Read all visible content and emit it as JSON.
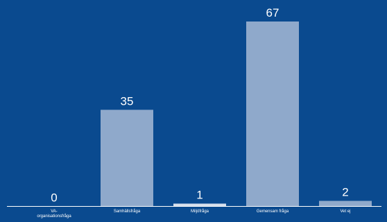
{
  "chart_data": {
    "type": "bar",
    "categories": [
      "VA-organisationsfråga",
      "Samhällsfråga",
      "Miljöfråga",
      "Gemensam fråga",
      "Vet ej"
    ],
    "category_display": [
      [
        "VA-",
        "organisationsfråga"
      ],
      [
        "Samhällsfråga"
      ],
      [
        "Miljöfråga"
      ],
      [
        "Gemensam fråga"
      ],
      [
        "Vet ej"
      ]
    ],
    "values": [
      0,
      35,
      1,
      67,
      2
    ],
    "value_labels": [
      "0",
      "35",
      "1",
      "67",
      "2"
    ],
    "ylim": [
      0,
      70
    ],
    "grid": false,
    "legend": "none",
    "title": "",
    "xlabel": "",
    "ylabel": ""
  },
  "colors": {
    "background": "#0a4a8f",
    "bar": "#8fa9cb",
    "bar_small": "#d6dfec",
    "axis": "#ffffff",
    "text": "#ffffff"
  }
}
